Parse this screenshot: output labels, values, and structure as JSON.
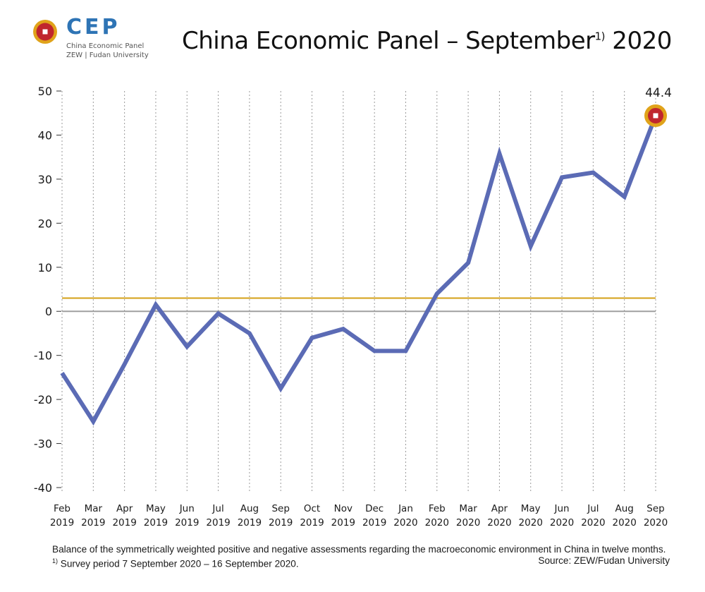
{
  "header": {
    "logo_text": "CEP",
    "logo_sub1": "China Economic Panel",
    "logo_sub2": "ZEW | Fudan University",
    "title_main": "China Economic Panel – September",
    "title_sup": "1)",
    "title_year": " 2020"
  },
  "footer": {
    "caption_text": "Balance of the symmetrically weighted positive and negative assessments regarding the macroeconomic environment in China in twelve months. ",
    "caption_sup": "1)",
    "caption_text2": " Survey period 7 September 2020 – 16 September 2020.",
    "source": "Source: ZEW/Fudan University"
  },
  "colors": {
    "line": "#5b6bb5",
    "average": "#d4a017",
    "zero": "#a0a0a0",
    "marker_outer": "#e0a31a",
    "marker_inner": "#c0262d",
    "logo_blue": "#2e74b5"
  },
  "chart_data": {
    "type": "line",
    "categories": [
      [
        "Feb",
        "2019"
      ],
      [
        "Mar",
        "2019"
      ],
      [
        "Apr",
        "2019"
      ],
      [
        "May",
        "2019"
      ],
      [
        "Jun",
        "2019"
      ],
      [
        "Jul",
        "2019"
      ],
      [
        "Aug",
        "2019"
      ],
      [
        "Sep",
        "2019"
      ],
      [
        "Oct",
        "2019"
      ],
      [
        "Nov",
        "2019"
      ],
      [
        "Dec",
        "2019"
      ],
      [
        "Jan",
        "2020"
      ],
      [
        "Feb",
        "2020"
      ],
      [
        "Mar",
        "2020"
      ],
      [
        "Apr",
        "2020"
      ],
      [
        "May",
        "2020"
      ],
      [
        "Jun",
        "2020"
      ],
      [
        "Jul",
        "2020"
      ],
      [
        "Aug",
        "2020"
      ],
      [
        "Sep",
        "2020"
      ]
    ],
    "series": [
      {
        "values": [
          -14,
          -25,
          -12,
          1.5,
          -8,
          -0.5,
          -5,
          -17.5,
          -6,
          -4,
          -9,
          -9,
          4,
          11,
          35.8,
          14.8,
          30.4,
          31.5,
          26,
          44.4
        ]
      }
    ],
    "reference_line": 3,
    "zero_line": 0,
    "ylim": [
      -40,
      50
    ],
    "yticks": [
      -40,
      -30,
      -20,
      -10,
      0,
      10,
      20,
      30,
      40,
      50
    ],
    "grid": "vertical-dotted",
    "highlight_label": "44.4"
  }
}
